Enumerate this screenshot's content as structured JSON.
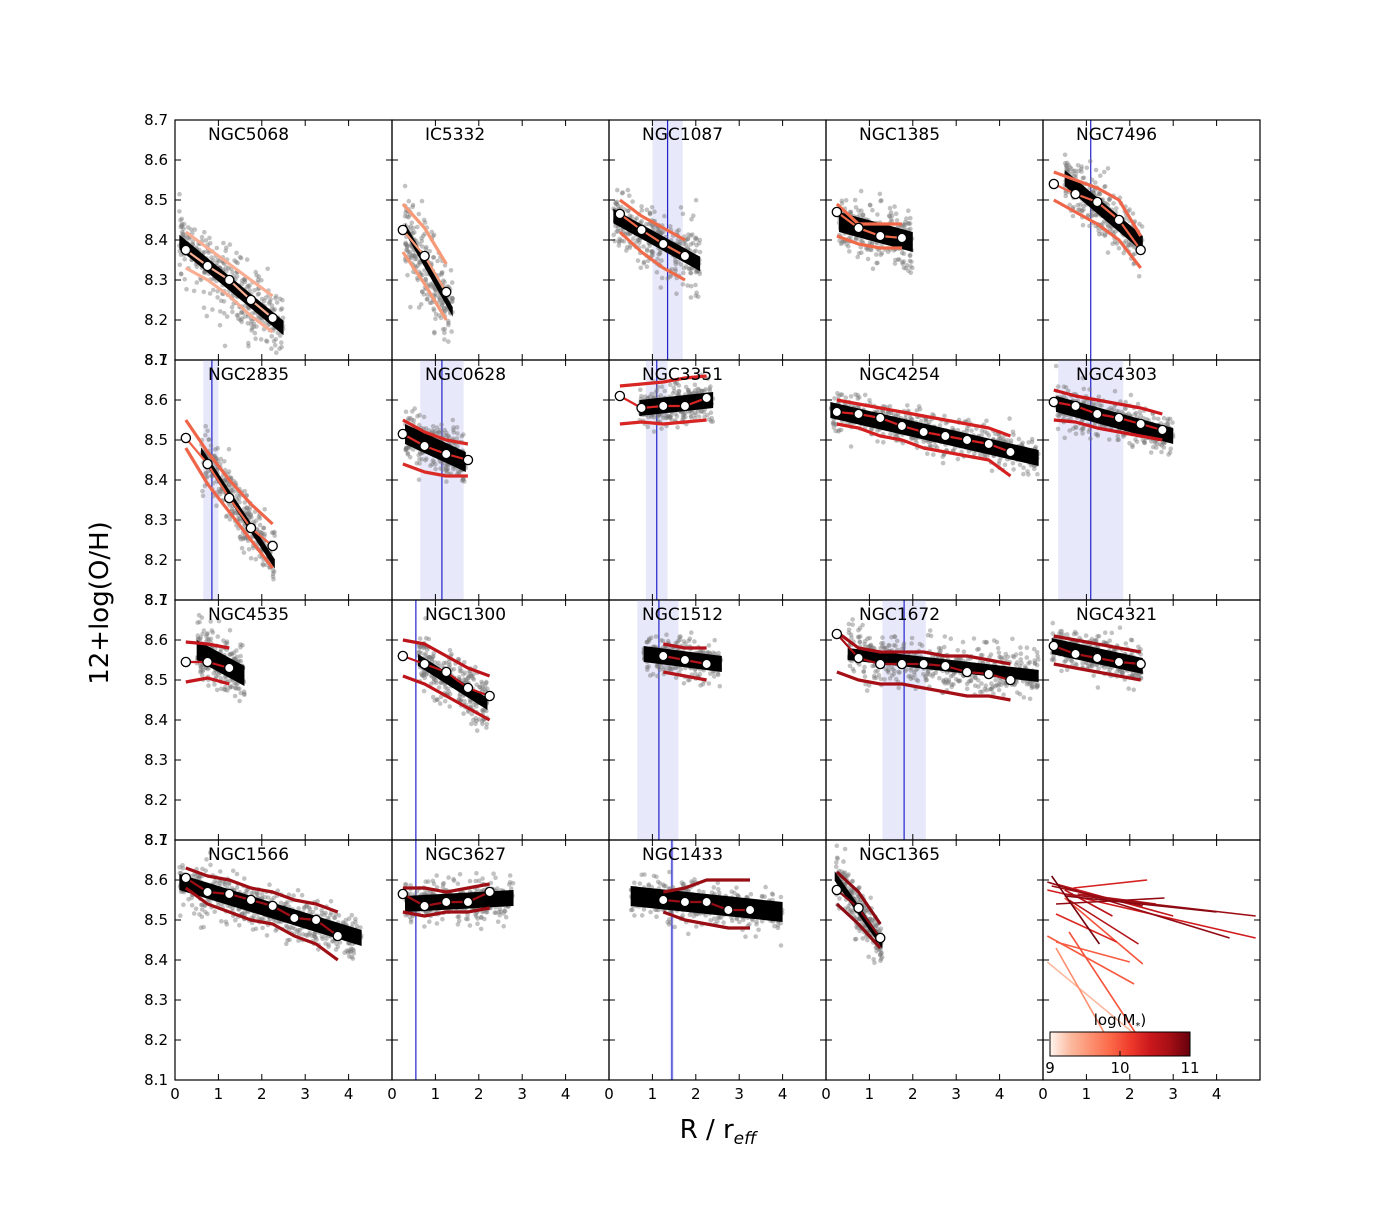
{
  "figure": {
    "ylabel": "12+log(O/H)",
    "xlabel_main": "R / r",
    "xlabel_sub": "eff",
    "colorbar_label": "log(M",
    "colorbar_label_sub": "*",
    "colorbar_label_close": ")"
  },
  "chart_data": {
    "type": "scatter",
    "grid": false,
    "legend": "none",
    "shared_xlim": [
      0,
      5
    ],
    "shared_ylim": [
      8.1,
      8.7
    ],
    "x_ticks": [
      0,
      1,
      2,
      3,
      4
    ],
    "y_ticks": [
      8.1,
      8.2,
      8.3,
      8.4,
      8.5,
      8.6,
      8.7
    ],
    "colors": {
      "scatter": "#777777",
      "fit_band": "#000000",
      "bin_marker_fill": "#ffffff",
      "bar_line": "#2222cc",
      "bar_band": "#e8e8fb"
    },
    "panels": [
      {
        "name": "NGC5068",
        "logM": 9.3,
        "color": "#f9ae93",
        "fit": {
          "x0": 0.1,
          "x1": 2.5,
          "y0": 8.395,
          "y1": 8.18,
          "w": 0.018
        },
        "bins": {
          "x": [
            0.25,
            0.75,
            1.25,
            1.75,
            2.25
          ],
          "y": [
            8.375,
            8.335,
            8.3,
            8.25,
            8.205
          ]
        },
        "env_hi": [
          8.42,
          8.38,
          8.34,
          8.3,
          8.26
        ],
        "env_lo": [
          8.33,
          8.3,
          8.26,
          8.21,
          8.17
        ],
        "scatter_sd": 0.045,
        "bar": null
      },
      {
        "name": "IC5332",
        "logM": 9.6,
        "color": "#f79a78",
        "fit": {
          "x0": 0.3,
          "x1": 1.4,
          "y0": 8.43,
          "y1": 8.22,
          "w": 0.012
        },
        "bins": {
          "x": [
            0.25,
            0.75,
            1.25
          ],
          "y": [
            8.425,
            8.36,
            8.27
          ]
        },
        "env_hi": [
          8.49,
          8.43,
          8.34
        ],
        "env_lo": [
          8.37,
          8.29,
          8.2
        ],
        "scatter_sd": 0.05,
        "bar": null
      },
      {
        "name": "NGC1087",
        "logM": 9.95,
        "color": "#f06a4a",
        "fit": {
          "x0": 0.1,
          "x1": 2.1,
          "y0": 8.46,
          "y1": 8.34,
          "w": 0.018
        },
        "bins": {
          "x": [
            0.25,
            0.75,
            1.25,
            1.75
          ],
          "y": [
            8.465,
            8.425,
            8.39,
            8.36
          ]
        },
        "env_hi": [
          8.5,
          8.46,
          8.43,
          8.4
        ],
        "env_lo": [
          8.42,
          8.37,
          8.33,
          8.3
        ],
        "scatter_sd": 0.04,
        "bar": {
          "x": 1.35,
          "lo": 1.0,
          "hi": 1.7
        }
      },
      {
        "name": "NGC1385",
        "logM": 9.95,
        "color": "#f06a4a",
        "fit": {
          "x0": 0.3,
          "x1": 2.0,
          "y0": 8.445,
          "y1": 8.395,
          "w": 0.025
        },
        "bins": {
          "x": [
            0.25,
            0.75,
            1.25,
            1.75
          ],
          "y": [
            8.47,
            8.43,
            8.41,
            8.405
          ]
        },
        "env_hi": [
          8.49,
          8.44,
          8.44,
          8.44
        ],
        "env_lo": [
          8.41,
          8.39,
          8.38,
          8.38
        ],
        "scatter_sd": 0.035,
        "bar": null
      },
      {
        "name": "NGC7496",
        "logM": 10.0,
        "color": "#ef6549",
        "fit": {
          "x0": 0.5,
          "x1": 2.3,
          "y0": 8.555,
          "y1": 8.39,
          "w": 0.02
        },
        "bins": {
          "x": [
            0.25,
            0.75,
            1.25,
            1.75,
            2.25
          ],
          "y": [
            8.54,
            8.515,
            8.495,
            8.45,
            8.375
          ]
        },
        "env_hi": [
          8.57,
          8.55,
          8.53,
          8.5,
          8.41
        ],
        "env_lo": [
          8.5,
          8.47,
          8.44,
          8.4,
          8.33
        ],
        "scatter_sd": 0.035,
        "bar": {
          "x": 1.1,
          "lo": 1.1,
          "hi": 1.1
        }
      },
      {
        "name": "NGC2835",
        "logM": 10.0,
        "color": "#ef6549",
        "fit": {
          "x0": 0.6,
          "x1": 2.3,
          "y0": 8.47,
          "y1": 8.19,
          "w": 0.012
        },
        "bins": {
          "x": [
            0.25,
            0.75,
            1.25,
            1.75,
            2.25
          ],
          "y": [
            8.505,
            8.44,
            8.355,
            8.28,
            8.235
          ]
        },
        "env_hi": [
          8.55,
          8.47,
          8.4,
          8.34,
          8.29
        ],
        "env_lo": [
          8.48,
          8.39,
          8.32,
          8.25,
          8.18
        ],
        "scatter_sd": 0.035,
        "bar": {
          "x": 0.85,
          "lo": 0.65,
          "hi": 1.0
        }
      },
      {
        "name": "NGC0628",
        "logM": 10.3,
        "color": "#da2a26",
        "fit": {
          "x0": 0.3,
          "x1": 1.7,
          "y0": 8.515,
          "y1": 8.445,
          "w": 0.025
        },
        "bins": {
          "x": [
            0.25,
            0.75,
            1.25,
            1.75
          ],
          "y": [
            8.515,
            8.485,
            8.465,
            8.45
          ]
        },
        "env_hi": [
          8.55,
          8.52,
          8.5,
          8.49
        ],
        "env_lo": [
          8.44,
          8.42,
          8.41,
          8.41
        ],
        "scatter_sd": 0.035,
        "bar": {
          "x": 1.15,
          "lo": 0.65,
          "hi": 1.65
        }
      },
      {
        "name": "NGC3351",
        "logM": 10.35,
        "color": "#d82523",
        "fit": {
          "x0": 0.7,
          "x1": 2.4,
          "y0": 8.58,
          "y1": 8.6,
          "w": 0.02
        },
        "bins": {
          "x": [
            0.25,
            0.75,
            1.25,
            1.75,
            2.25
          ],
          "y": [
            8.61,
            8.58,
            8.585,
            8.585,
            8.605
          ]
        },
        "env_hi": [
          8.635,
          8.64,
          8.645,
          8.655,
          8.66
        ],
        "env_lo": [
          8.54,
          8.545,
          8.54,
          8.545,
          8.55
        ],
        "scatter_sd": 0.025,
        "bar": {
          "x": 1.1,
          "lo": 0.85,
          "hi": 1.35
        }
      },
      {
        "name": "NGC4254",
        "logM": 10.4,
        "color": "#d42020",
        "fit": {
          "x0": 0.1,
          "x1": 4.9,
          "y0": 8.575,
          "y1": 8.455,
          "w": 0.02
        },
        "bins": {
          "x": [
            0.25,
            0.75,
            1.25,
            1.75,
            2.25,
            2.75,
            3.25,
            3.75,
            4.25
          ],
          "y": [
            8.57,
            8.565,
            8.555,
            8.535,
            8.52,
            8.51,
            8.5,
            8.49,
            8.47
          ]
        },
        "env_hi": [
          8.6,
          8.59,
          8.58,
          8.57,
          8.56,
          8.55,
          8.54,
          8.53,
          8.51
        ],
        "env_lo": [
          8.54,
          8.53,
          8.51,
          8.5,
          8.48,
          8.47,
          8.46,
          8.45,
          8.41
        ],
        "scatter_sd": 0.025,
        "bar": null
      },
      {
        "name": "NGC4303",
        "logM": 10.5,
        "color": "#cb181d",
        "fit": {
          "x0": 0.3,
          "x1": 3.0,
          "y0": 8.59,
          "y1": 8.51,
          "w": 0.02
        },
        "bins": {
          "x": [
            0.25,
            0.75,
            1.25,
            1.75,
            2.25,
            2.75
          ],
          "y": [
            8.595,
            8.585,
            8.565,
            8.555,
            8.54,
            8.525
          ]
        },
        "env_hi": [
          8.625,
          8.61,
          8.6,
          8.59,
          8.58,
          8.565
        ],
        "env_lo": [
          8.55,
          8.545,
          8.53,
          8.52,
          8.51,
          8.5
        ],
        "scatter_sd": 0.025,
        "bar": {
          "x": 1.1,
          "lo": 0.35,
          "hi": 1.85
        }
      },
      {
        "name": "NGC4535",
        "logM": 10.55,
        "color": "#c4161c",
        "fit": {
          "x0": 0.5,
          "x1": 1.6,
          "y0": 8.575,
          "y1": 8.51,
          "w": 0.025
        },
        "bins": {
          "x": [
            0.25,
            0.75,
            1.25
          ],
          "y": [
            8.545,
            8.545,
            8.53
          ]
        },
        "env_hi": [
          8.595,
          8.59,
          8.58
        ],
        "env_lo": [
          8.495,
          8.505,
          8.49
        ],
        "scatter_sd": 0.035,
        "bar": null
      },
      {
        "name": "NGC1300",
        "logM": 10.6,
        "color": "#bc141a",
        "fit": {
          "x0": 0.6,
          "x1": 2.2,
          "y0": 8.55,
          "y1": 8.44,
          "w": 0.015
        },
        "bins": {
          "x": [
            0.25,
            0.75,
            1.25,
            1.75,
            2.25
          ],
          "y": [
            8.56,
            8.54,
            8.52,
            8.48,
            8.46
          ]
        },
        "env_hi": [
          8.6,
          8.59,
          8.56,
          8.53,
          8.51
        ],
        "env_lo": [
          8.51,
          8.49,
          8.46,
          8.43,
          8.4
        ],
        "scatter_sd": 0.035,
        "bar": {
          "x": 0.55,
          "lo": 0.55,
          "hi": 0.55
        }
      },
      {
        "name": "NGC1512",
        "logM": 10.65,
        "color": "#b3131a",
        "fit": {
          "x0": 0.8,
          "x1": 2.6,
          "y0": 8.565,
          "y1": 8.54,
          "w": 0.02
        },
        "bins": {
          "x": [
            1.25,
            1.75,
            2.25
          ],
          "y": [
            8.56,
            8.55,
            8.54
          ]
        },
        "env_hi": [
          8.59,
          8.58,
          8.58
        ],
        "env_lo": [
          8.52,
          8.51,
          8.5
        ],
        "scatter_sd": 0.025,
        "bar": {
          "x": 1.15,
          "lo": 0.65,
          "hi": 1.6
        }
      },
      {
        "name": "NGC1672",
        "logM": 10.75,
        "color": "#a50f15",
        "fit": {
          "x0": 0.5,
          "x1": 4.9,
          "y0": 8.565,
          "y1": 8.51,
          "w": 0.015
        },
        "bins": {
          "x": [
            0.25,
            0.75,
            1.25,
            1.75,
            2.25,
            2.75,
            3.25,
            3.75,
            4.25
          ],
          "y": [
            8.615,
            8.555,
            8.54,
            8.54,
            8.54,
            8.535,
            8.52,
            8.515,
            8.5
          ]
        },
        "env_hi": [
          8.62,
          8.58,
          8.57,
          8.57,
          8.57,
          8.56,
          8.56,
          8.55,
          8.54
        ],
        "env_lo": [
          8.52,
          8.5,
          8.49,
          8.49,
          8.48,
          8.47,
          8.46,
          8.46,
          8.45
        ],
        "scatter_sd": 0.03,
        "bar": {
          "x": 1.8,
          "lo": 1.3,
          "hi": 2.3
        }
      },
      {
        "name": "NGC4321",
        "logM": 10.75,
        "color": "#a50f15",
        "fit": {
          "x0": 0.2,
          "x1": 2.3,
          "y0": 8.585,
          "y1": 8.535,
          "w": 0.02
        },
        "bins": {
          "x": [
            0.25,
            0.75,
            1.25,
            1.75,
            2.25
          ],
          "y": [
            8.585,
            8.565,
            8.555,
            8.545,
            8.54
          ]
        },
        "env_hi": [
          8.61,
          8.6,
          8.59,
          8.58,
          8.57
        ],
        "env_lo": [
          8.54,
          8.53,
          8.52,
          8.51,
          8.5
        ],
        "scatter_sd": 0.025,
        "bar": null
      },
      {
        "name": "NGC1566",
        "logM": 10.8,
        "color": "#9f0e14",
        "fit": {
          "x0": 0.1,
          "x1": 4.3,
          "y0": 8.595,
          "y1": 8.455,
          "w": 0.02
        },
        "bins": {
          "x": [
            0.25,
            0.75,
            1.25,
            1.75,
            2.25,
            2.75,
            3.25,
            3.75
          ],
          "y": [
            8.605,
            8.57,
            8.565,
            8.55,
            8.535,
            8.505,
            8.5,
            8.46
          ]
        },
        "env_hi": [
          8.63,
          8.61,
          8.6,
          8.58,
          8.57,
          8.55,
          8.54,
          8.52
        ],
        "env_lo": [
          8.58,
          8.54,
          8.52,
          8.5,
          8.49,
          8.46,
          8.44,
          8.4
        ],
        "scatter_sd": 0.03,
        "bar": null
      },
      {
        "name": "NGC3627",
        "logM": 10.8,
        "color": "#9f0e14",
        "fit": {
          "x0": 0.3,
          "x1": 2.8,
          "y0": 8.54,
          "y1": 8.555,
          "w": 0.02
        },
        "bins": {
          "x": [
            0.25,
            0.75,
            1.25,
            1.75,
            2.25
          ],
          "y": [
            8.565,
            8.535,
            8.545,
            8.545,
            8.57
          ]
        },
        "env_hi": [
          8.58,
          8.58,
          8.57,
          8.58,
          8.59
        ],
        "env_lo": [
          8.52,
          8.51,
          8.52,
          8.52,
          8.53
        ],
        "scatter_sd": 0.025,
        "bar": {
          "x": 0.55,
          "lo": 0.55,
          "hi": 0.55
        }
      },
      {
        "name": "NGC1433",
        "logM": 10.85,
        "color": "#990d14",
        "fit": {
          "x0": 0.5,
          "x1": 4.0,
          "y0": 8.56,
          "y1": 8.52,
          "w": 0.025
        },
        "bins": {
          "x": [
            1.25,
            1.75,
            2.25,
            2.75,
            3.25
          ],
          "y": [
            8.55,
            8.545,
            8.545,
            8.525,
            8.525
          ]
        },
        "env_hi": [
          8.57,
          8.58,
          8.6,
          8.6,
          8.6
        ],
        "env_lo": [
          8.52,
          8.5,
          8.49,
          8.48,
          8.48
        ],
        "scatter_sd": 0.025,
        "bar": {
          "x": 1.45,
          "lo": 1.4,
          "hi": 1.5
        }
      },
      {
        "name": "NGC1365",
        "logM": 10.95,
        "color": "#8c0a12",
        "fit": {
          "x0": 0.2,
          "x1": 1.3,
          "y0": 8.61,
          "y1": 8.44,
          "w": 0.012
        },
        "bins": {
          "x": [
            0.25,
            0.75,
            1.25
          ],
          "y": [
            8.575,
            8.53,
            8.455
          ]
        },
        "env_hi": [
          8.62,
          8.57,
          8.49
        ],
        "env_lo": [
          8.54,
          8.49,
          8.43
        ],
        "scatter_sd": 0.03,
        "bar": null
      }
    ],
    "summary_panel": {
      "colorbar": {
        "min": 9,
        "max": 11,
        "ticks": [
          9,
          10,
          11
        ],
        "cmap_hex": [
          "#fff5f0",
          "#fcbba1",
          "#fc9272",
          "#fb6a4a",
          "#ef3b2c",
          "#cb181d",
          "#a50f15",
          "#67000d"
        ]
      },
      "lines": "fit lines of all galaxies above, coloured by log(M*)"
    }
  }
}
